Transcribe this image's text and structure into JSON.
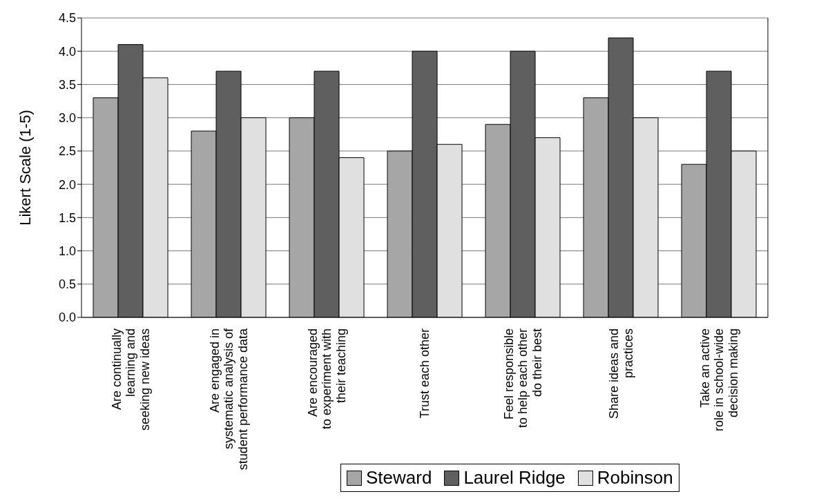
{
  "chart_data": {
    "type": "bar",
    "ylabel": "Likert Scale (1-5)",
    "categories": [
      "Are continually\nlearning and\nseeking new ideas",
      "Are engaged in\nsystematic analysis of\nstudent performance data",
      "Are encouraged\nto experiment with\ntheir teaching",
      "Trust each other",
      "Feel responsible\nto help each other\ndo their best",
      "Share ideas and\npractices",
      "Take an active\nrole in school-wide\ndecision making"
    ],
    "series": [
      {
        "name": "Steward",
        "color": "#a6a6a6",
        "values": [
          3.3,
          2.8,
          3.0,
          2.5,
          2.9,
          3.3,
          2.3
        ]
      },
      {
        "name": "Laurel Ridge",
        "color": "#5f5f5f",
        "values": [
          4.1,
          3.7,
          3.7,
          4.0,
          4.0,
          4.2,
          3.7
        ]
      },
      {
        "name": "Robinson",
        "color": "#e0e0e0",
        "values": [
          3.6,
          3.0,
          2.4,
          2.6,
          2.7,
          3.0,
          2.5
        ]
      }
    ],
    "ylim": [
      0,
      4.5
    ],
    "yticks": [
      {
        "value": 0,
        "label": "0.0"
      },
      {
        "value": 0.5,
        "label": "0.5"
      },
      {
        "value": 1,
        "label": "1.0"
      },
      {
        "value": 1.5,
        "label": "1.5"
      },
      {
        "value": 2,
        "label": "2.0"
      },
      {
        "value": 2.5,
        "label": "2.5"
      },
      {
        "value": 3,
        "label": "3.0"
      },
      {
        "value": 3.5,
        "label": "3.5"
      },
      {
        "value": 4,
        "label": "4.0"
      },
      {
        "value": 4.5,
        "label": "4.5"
      }
    ],
    "grid": "y",
    "legend": "bottom right"
  }
}
